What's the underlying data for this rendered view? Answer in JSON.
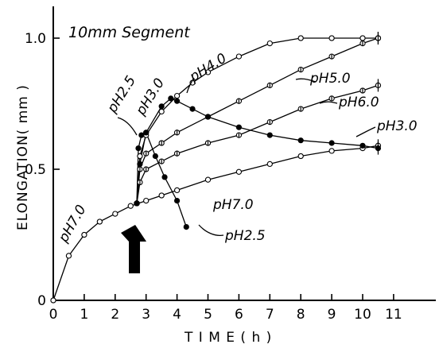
{
  "chart_data": {
    "type": "line",
    "title": "10mm Segment",
    "xlabel": "T I M E ( h )",
    "ylabel": "ELONGATION( mm )",
    "xlim": [
      0,
      11.5
    ],
    "ylim": [
      0,
      1.1
    ],
    "x_ticks": [
      0,
      1,
      2,
      3,
      4,
      5,
      6,
      7,
      8,
      9,
      10,
      11
    ],
    "x_tick_labels": [
      "0",
      "1",
      "2",
      "3",
      "4",
      "5",
      "6",
      "7",
      "8",
      "9",
      "10",
      "11"
    ],
    "y_ticks": [
      0,
      0.5,
      1.0
    ],
    "y_tick_labels": [
      "0",
      "0.5",
      "1.0"
    ],
    "grid": false,
    "legend": "none",
    "annotations": [
      {
        "type": "arrow",
        "direction": "up",
        "x": 2.7,
        "meaning": "buffer change"
      }
    ],
    "series": [
      {
        "name": "pH7.0",
        "marker": "open-circle",
        "x": [
          0,
          0.5,
          1,
          1.5,
          2,
          2.5,
          3,
          3.5,
          4,
          5,
          6,
          7,
          8,
          9,
          10,
          10.5
        ],
        "y": [
          0,
          0.17,
          0.25,
          0.3,
          0.33,
          0.36,
          0.38,
          0.4,
          0.42,
          0.46,
          0.49,
          0.52,
          0.55,
          0.57,
          0.58,
          0.59
        ]
      },
      {
        "name": "pH6.0",
        "marker": "half-open-circle",
        "x": [
          2.7,
          2.8,
          3,
          3.5,
          4,
          5,
          6,
          7,
          8,
          9,
          10,
          10.5
        ],
        "y": [
          0.37,
          0.45,
          0.5,
          0.53,
          0.56,
          0.6,
          0.63,
          0.68,
          0.73,
          0.77,
          0.8,
          0.82
        ]
      },
      {
        "name": "pH5.0",
        "marker": "half-open-circle",
        "x": [
          2.7,
          2.8,
          3,
          3.5,
          4,
          5,
          6,
          7,
          8,
          9,
          10,
          10.5
        ],
        "y": [
          0.37,
          0.5,
          0.56,
          0.6,
          0.64,
          0.7,
          0.76,
          0.82,
          0.88,
          0.93,
          0.98,
          1.0
        ]
      },
      {
        "name": "pH4.0",
        "marker": "open-circle",
        "x": [
          2.7,
          2.8,
          3,
          3.5,
          4,
          4.5,
          5,
          6,
          7,
          8,
          9,
          10,
          10.5
        ],
        "y": [
          0.37,
          0.55,
          0.63,
          0.72,
          0.78,
          0.83,
          0.87,
          0.93,
          0.98,
          1.0,
          1.0,
          1.0,
          1.0
        ]
      },
      {
        "name": "pH3.0",
        "marker": "filled-circle",
        "x": [
          2.7,
          2.8,
          3,
          3.5,
          3.8,
          4,
          4.5,
          5,
          6,
          7,
          8,
          9,
          10,
          10.5
        ],
        "y": [
          0.37,
          0.52,
          0.64,
          0.74,
          0.77,
          0.76,
          0.73,
          0.7,
          0.66,
          0.63,
          0.61,
          0.6,
          0.59,
          0.58
        ]
      },
      {
        "name": "pH2.5",
        "marker": "filled-circle",
        "x": [
          2.7,
          2.75,
          2.85,
          3.0,
          3.3,
          3.6,
          4.0,
          4.3
        ],
        "y": [
          0.37,
          0.58,
          0.63,
          0.64,
          0.55,
          0.47,
          0.38,
          0.28
        ]
      }
    ]
  }
}
